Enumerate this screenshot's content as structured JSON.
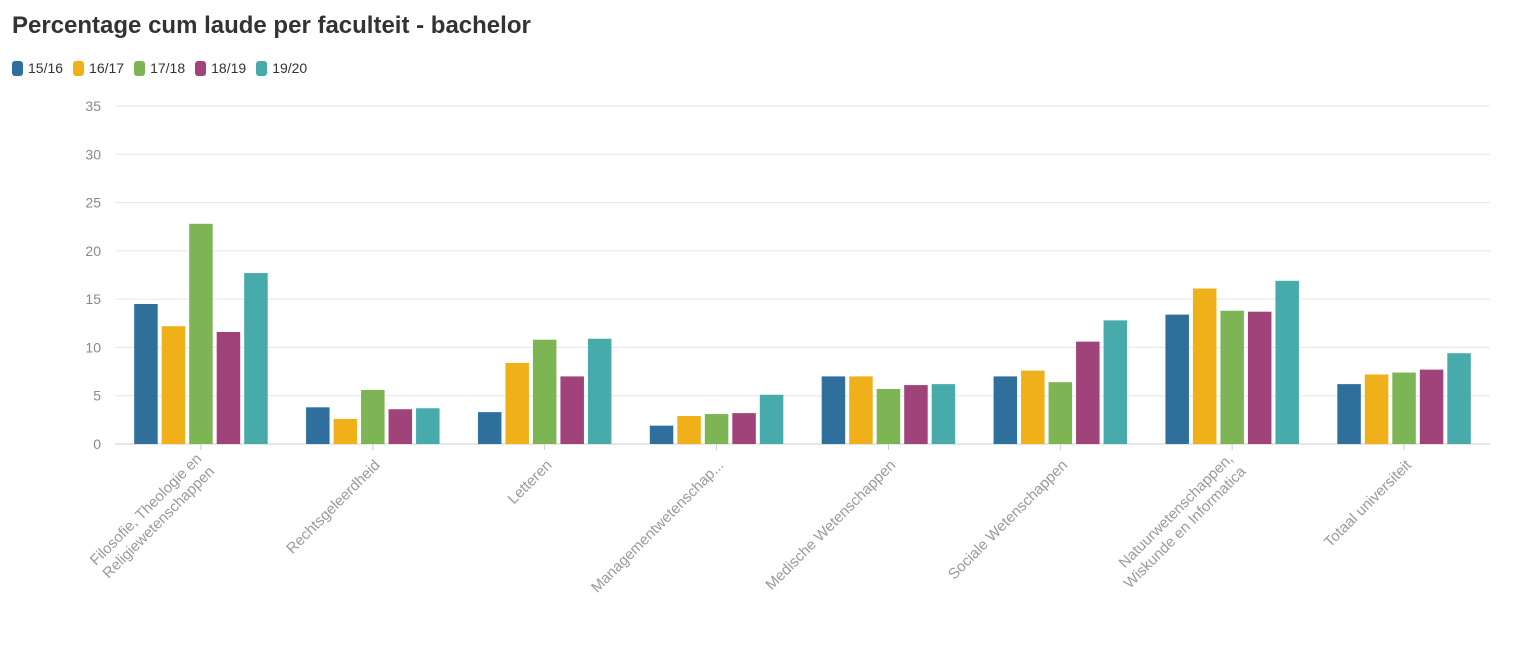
{
  "chart_data": {
    "type": "bar",
    "title": "Percentage cum laude per faculteit - bachelor",
    "categories": [
      [
        "Filosofie, Theologie en",
        "Religiewetenschappen"
      ],
      [
        "Rechtsgeleerdheid"
      ],
      [
        "Letteren"
      ],
      [
        "Managementwetenschap..."
      ],
      [
        "Medische Wetenschappen"
      ],
      [
        "Sociale Wetenschappen"
      ],
      [
        "Natuurwetenschappen,",
        "Wiskunde en Informatica"
      ],
      [
        "Totaal universiteit"
      ]
    ],
    "series": [
      {
        "name": "15/16",
        "color": "#2e6f9b",
        "values": [
          14.5,
          3.8,
          3.3,
          1.9,
          7.0,
          7.0,
          13.4,
          6.2
        ]
      },
      {
        "name": "16/17",
        "color": "#f0b019",
        "values": [
          12.2,
          2.6,
          8.4,
          2.9,
          7.0,
          7.6,
          16.1,
          7.2
        ]
      },
      {
        "name": "17/18",
        "color": "#7db454",
        "values": [
          22.8,
          5.6,
          10.8,
          3.1,
          5.7,
          6.4,
          13.8,
          7.4
        ]
      },
      {
        "name": "18/19",
        "color": "#a0437a",
        "values": [
          11.6,
          3.6,
          7.0,
          3.2,
          6.1,
          10.6,
          13.7,
          7.7
        ]
      },
      {
        "name": "19/20",
        "color": "#47aaab",
        "values": [
          17.7,
          3.7,
          10.9,
          5.1,
          6.2,
          12.8,
          16.9,
          9.4
        ]
      }
    ],
    "xlabel": "",
    "ylabel": "",
    "ylim": [
      0,
      35
    ],
    "yticks": [
      0,
      5,
      10,
      15,
      20,
      25,
      30,
      35
    ],
    "grid": true,
    "legend": "top-left"
  }
}
